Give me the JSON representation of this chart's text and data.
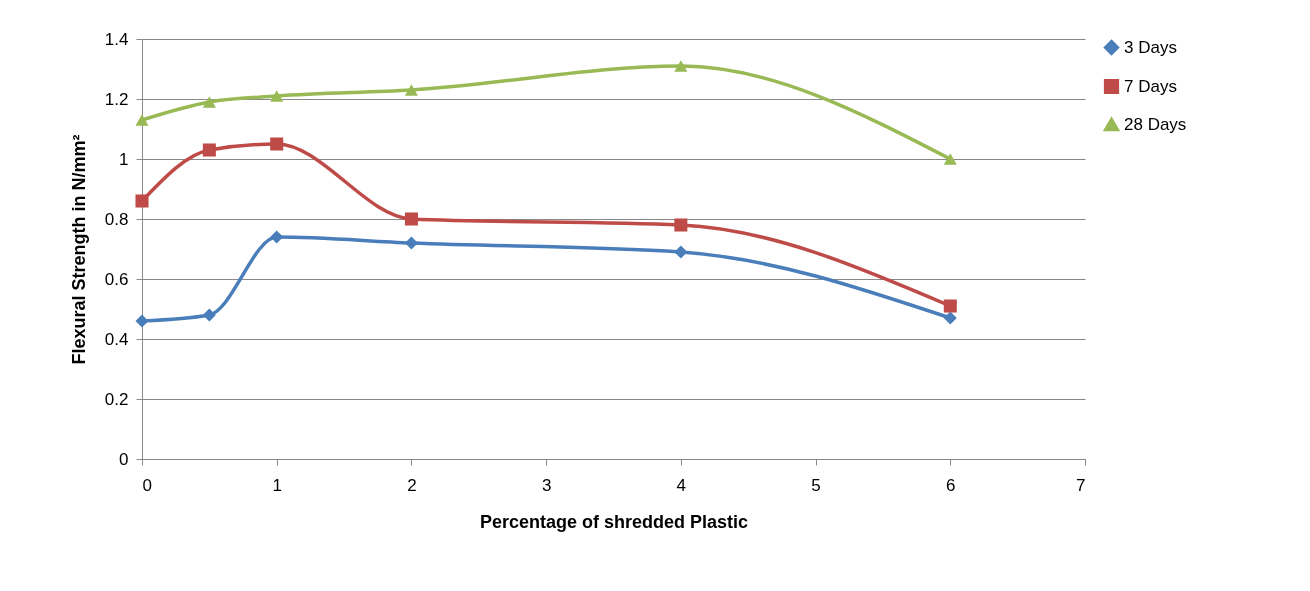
{
  "chart_data": {
    "type": "line",
    "xlabel": "Percentage of shredded Plastic",
    "ylabel": "Flexural Strength in N/mm²",
    "x": [
      0,
      0.5,
      1,
      2,
      4,
      6
    ],
    "series": [
      {
        "name": "3 Days",
        "color": "#4a7ebb",
        "marker": "diamond",
        "values": [
          0.46,
          0.48,
          0.74,
          0.72,
          0.69,
          0.47
        ]
      },
      {
        "name": "7 Days",
        "color": "#be4b48",
        "marker": "square",
        "values": [
          0.86,
          1.03,
          1.05,
          0.8,
          0.78,
          0.51
        ]
      },
      {
        "name": "28 Days",
        "color": "#98b954",
        "marker": "triangle",
        "values": [
          1.13,
          1.19,
          1.21,
          1.23,
          1.31,
          1.0
        ]
      }
    ],
    "xlim": [
      0,
      7
    ],
    "xticks": [
      0,
      1,
      2,
      3,
      4,
      5,
      6,
      7
    ],
    "ylim": [
      0,
      1.4
    ],
    "yticks": [
      0,
      0.2,
      0.4,
      0.6,
      0.8,
      1,
      1.2,
      1.4
    ],
    "grid": "y",
    "legend": "right"
  }
}
